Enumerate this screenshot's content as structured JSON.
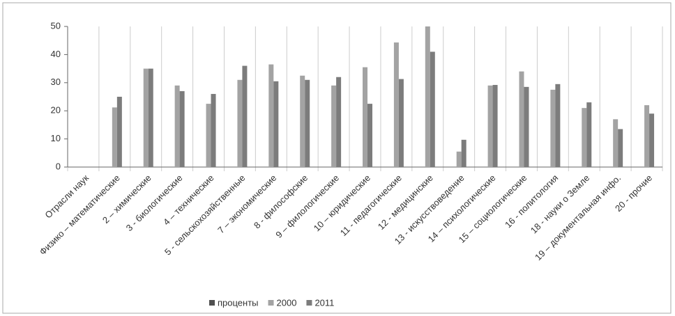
{
  "chart_data": {
    "type": "bar",
    "categories": [
      "Отрасли наук",
      "Физико – математические",
      "2 – химические",
      "3 - биологические",
      "4 – технические",
      "5 - сельскохозяйственные",
      "7 – экономические",
      "8 - философские",
      "9 – филологические",
      "10 – юридические",
      "11 - педагогические",
      "12 - медицинские",
      "13 - искусствоведение",
      "14 – психологические",
      "15 – социологические",
      "16 - политология",
      "18 - науки о Земле",
      "19 – документальная инфо.",
      "20 - прочие"
    ],
    "series": [
      {
        "name": "проценты",
        "color": "#505050",
        "values": [
          null,
          null,
          null,
          null,
          null,
          null,
          null,
          null,
          null,
          null,
          null,
          null,
          null,
          null,
          null,
          null,
          null,
          null,
          null
        ]
      },
      {
        "name": "2000",
        "color": "#a3a3a3",
        "values": [
          null,
          21.2,
          35,
          29,
          22.5,
          31,
          36.5,
          32.5,
          29,
          35.5,
          44.3,
          50,
          5.5,
          29,
          34,
          27.5,
          21,
          17,
          22
        ]
      },
      {
        "name": "2011",
        "color": "#7c7c7c",
        "values": [
          null,
          25,
          35,
          27,
          26,
          36,
          30.5,
          31,
          32,
          22.5,
          31.3,
          41,
          9.7,
          29.2,
          28.5,
          29.5,
          23,
          13.5,
          19
        ]
      }
    ],
    "ylim": [
      0,
      50
    ],
    "yticks": [
      0,
      10,
      20,
      30,
      40,
      50
    ],
    "grid": true
  }
}
